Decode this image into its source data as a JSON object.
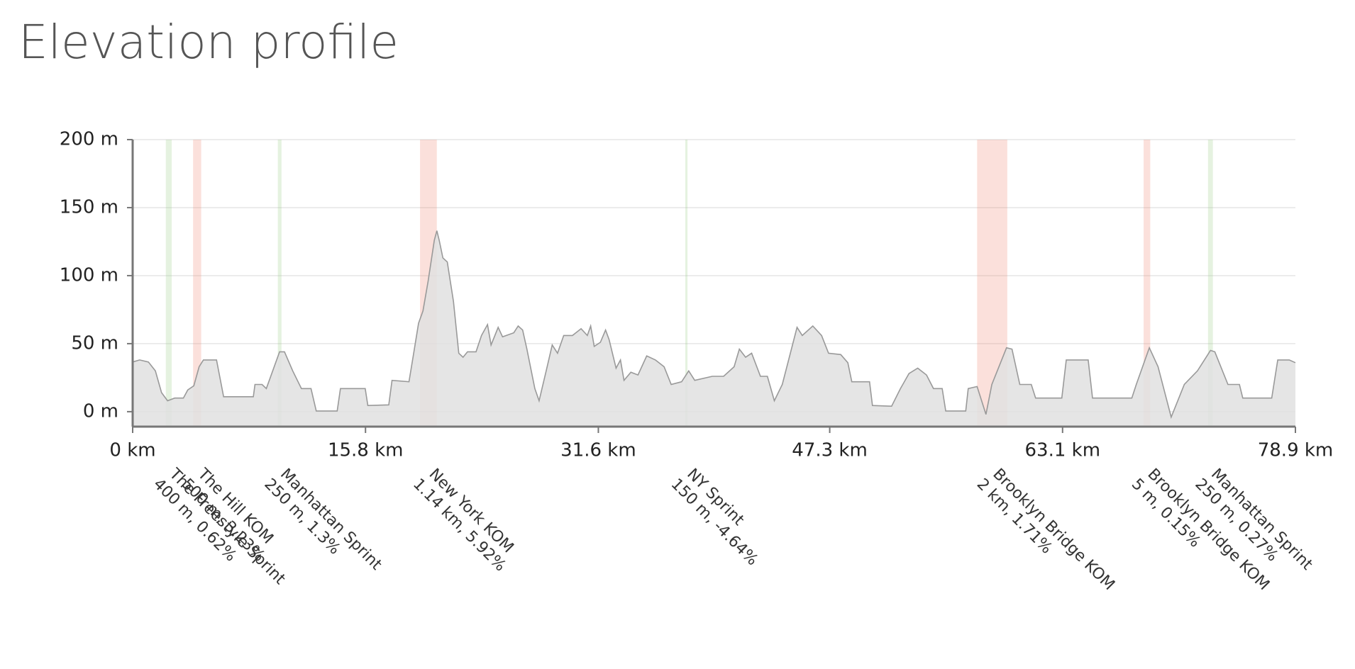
{
  "chart_data": {
    "type": "area",
    "title": "Elevation profile",
    "series": [
      {
        "name": "Elevation",
        "color": "#e0e0e0",
        "stroke": "#999999",
        "x": [
          0,
          0.47,
          1.07,
          1.54,
          1.96,
          2.37,
          2.85,
          3.44,
          3.74,
          4.15,
          4.51,
          4.8,
          5.69,
          6.17,
          8.19,
          8.3,
          8.78,
          9.07,
          9.97,
          10.3,
          10.86,
          11.45,
          12.1,
          12.46,
          13.88,
          14.1,
          15.78,
          15.96,
          17.38,
          17.6,
          18.75,
          19.04,
          19.4,
          19.7,
          20.05,
          20.47,
          20.64,
          20.8,
          21.05,
          21.35,
          21.77,
          22.13,
          22.42,
          22.72,
          23.3,
          23.67,
          24.08,
          24.32,
          24.8,
          25.1,
          25.86,
          26.16,
          26.46,
          26.75,
          27.29,
          27.58,
          28.06,
          28.47,
          28.83,
          29.25,
          29.84,
          30.43,
          30.85,
          31.08,
          31.32,
          31.74,
          32.09,
          32.33,
          32.8,
          33.1,
          33.34,
          33.81,
          34.29,
          34.88,
          35.47,
          36.06,
          36.54,
          37.25,
          37.73,
          38.14,
          39.33,
          40.1,
          40.81,
          41.17,
          41.59,
          42.0,
          42.6,
          43.07,
          43.54,
          44.08,
          45.08,
          45.44,
          46.15,
          46.75,
          47.22,
          48.05,
          48.53,
          48.8,
          50.0,
          50.2,
          51.5,
          52.1,
          52.68,
          53.27,
          53.87,
          54.34,
          54.93,
          55.17,
          56.53,
          56.7,
          57.3,
          57.9,
          58.3,
          59.3,
          59.67,
          60.2,
          60.98,
          61.27,
          63.05,
          63.35,
          64.84,
          65.13,
          67.8,
          68.1,
          68.99,
          69.58,
          70.47,
          71.36,
          72.25,
          73.14,
          73.43,
          74.32,
          75.1,
          75.33,
          77.29,
          77.7,
          78.48,
          78.9
        ],
        "values": [
          36.5,
          38,
          36.5,
          30,
          14,
          8,
          10,
          10,
          16,
          19,
          33,
          38,
          38,
          11,
          11,
          20,
          20,
          17,
          44,
          44,
          30,
          17,
          17,
          0.5,
          0.5,
          17,
          17,
          4.5,
          5,
          23,
          22,
          41,
          65,
          74,
          96,
          126,
          133,
          126,
          113,
          110,
          81,
          43,
          40,
          44,
          44,
          56,
          64,
          49,
          62,
          55,
          58,
          63,
          60,
          46,
          17,
          8,
          30,
          49,
          43,
          56,
          56,
          61,
          56,
          63,
          48,
          51,
          60,
          53,
          32,
          38,
          23,
          29,
          27,
          41,
          38,
          33,
          20,
          22,
          30,
          23,
          26,
          26,
          33,
          46,
          40,
          43,
          26,
          26,
          8,
          20,
          62,
          56,
          63,
          56,
          43,
          42,
          36,
          22,
          22,
          4.5,
          4,
          17,
          28,
          32,
          27,
          17,
          17,
          0.5,
          0.5,
          17,
          18.5,
          -2,
          20,
          47,
          46,
          20,
          20,
          10,
          10,
          38,
          38,
          10,
          10,
          20,
          47,
          33,
          -4,
          20,
          30,
          45,
          44,
          20,
          20,
          10,
          10,
          38,
          38,
          36
        ]
      }
    ],
    "segments": [
      {
        "name": "The Freestyle Sprint",
        "detail": "400 m, 0.62%",
        "start": 2.25,
        "end": 2.65,
        "color": "rgba(150,205,130,0.25)"
      },
      {
        "name": "The Hill KOM",
        "detail": "500 m, 3.23%",
        "start": 4.1,
        "end": 4.65,
        "color": "rgba(240,130,110,0.25)"
      },
      {
        "name": "Manhattan Sprint",
        "detail": "250 m, 1.3%",
        "start": 9.85,
        "end": 10.1,
        "color": "rgba(150,205,130,0.25)"
      },
      {
        "name": "New York KOM",
        "detail": "1.14 km, 5.92%",
        "start": 19.5,
        "end": 20.64,
        "color": "rgba(240,130,110,0.25)"
      },
      {
        "name": "NY Sprint",
        "detail": "150 m, -4.64%",
        "start": 37.5,
        "end": 37.65,
        "color": "rgba(150,205,130,0.25)"
      },
      {
        "name": "Brooklyn Bridge KOM",
        "detail": "2 km, 1.71%",
        "start": 57.3,
        "end": 59.35,
        "color": "rgba(240,130,110,0.25)"
      },
      {
        "name": "Brooklyn Bridge KOM",
        "detail": "5 m, 0.15%",
        "start": 68.6,
        "end": 69.05,
        "color": "rgba(240,130,110,0.25)"
      },
      {
        "name": "Manhattan Sprint",
        "detail": "250 m, 0.27%",
        "start": 72.97,
        "end": 73.3,
        "color": "rgba(150,205,130,0.25)"
      }
    ],
    "xlim": [
      0,
      78.9
    ],
    "xticks": [
      {
        "value": 0,
        "label": "0 km"
      },
      {
        "value": 15.8,
        "label": "15.8 km"
      },
      {
        "value": 31.6,
        "label": "31.6 km"
      },
      {
        "value": 47.3,
        "label": "47.3 km"
      },
      {
        "value": 63.1,
        "label": "63.1 km"
      },
      {
        "value": 78.9,
        "label": "78.9 km"
      }
    ],
    "ylim": [
      -11,
      200
    ],
    "yticks": [
      {
        "value": 0,
        "label": "0 m"
      },
      {
        "value": 50,
        "label": "50 m"
      },
      {
        "value": 100,
        "label": "100 m"
      },
      {
        "value": 150,
        "label": "150 m"
      },
      {
        "value": 200,
        "label": "200 m"
      }
    ],
    "grid": true
  }
}
